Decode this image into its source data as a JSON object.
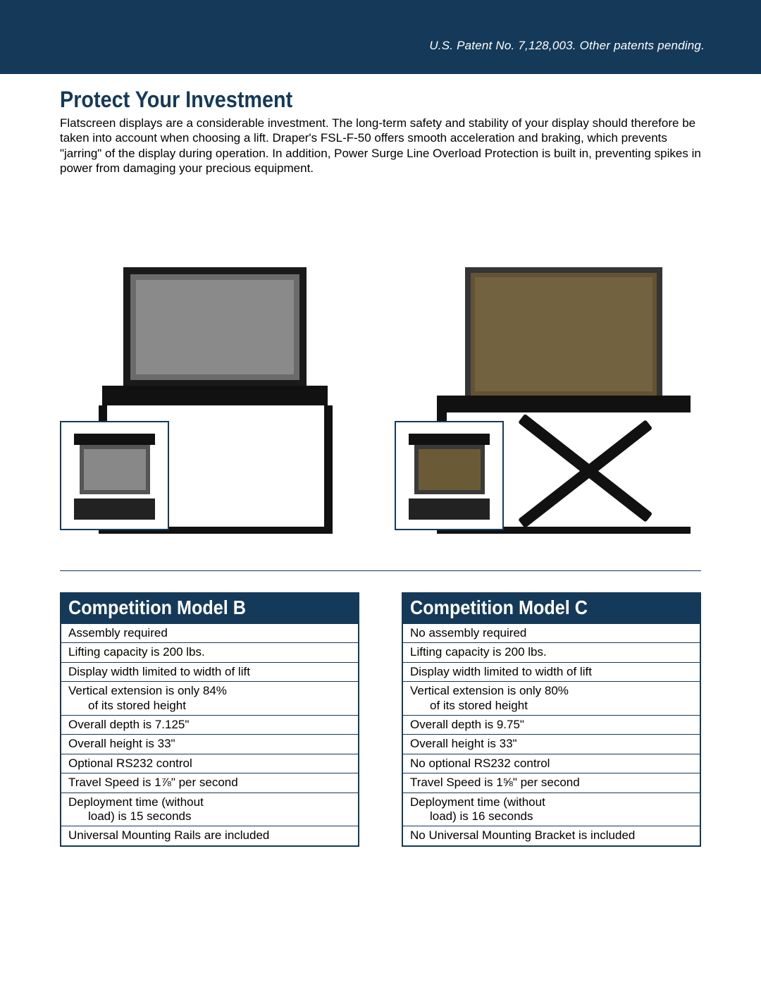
{
  "banner": {
    "background_color": "#153a59",
    "patent_text": "U.S. Patent No. 7,128,003. Other patents pending.",
    "patent_color": "#ffffff",
    "patent_fontsize": 17,
    "patent_style": "italic"
  },
  "section": {
    "heading": "Protect Your Investment",
    "heading_color": "#153a59",
    "heading_fontsize": 32,
    "body": "Flatscreen displays are a considerable investment.  The long-term safety and stability of your display should therefore be taken into account when choosing a lift.  Draper's FSL-F-50 offers smooth acceleration and braking, which prevents \"jarring\" of the display during operation.  In addition, Power Surge Line Overload Protection is built in, preventing spikes in power from damaging your precious equipment.",
    "body_fontsize": 17,
    "body_color": "#000000"
  },
  "figures": {
    "left": {
      "tv_frame_color": "#1a1a1a",
      "tv_bezel_color": "#6b6b6b",
      "tv_screen_color": "#8a8a8a",
      "lift_color": "#111111",
      "thumb_border_color": "#153a59"
    },
    "right": {
      "tv_frame_color": "#2b2b2b",
      "tv_screen_color": "#6b5a36",
      "lift_color": "#111111",
      "thumb_border_color": "#153a59"
    }
  },
  "divider_color": "#153a59",
  "tables": {
    "border_color": "#153a59",
    "header_bg": "#153a59",
    "header_color": "#ffffff",
    "header_fontsize": 28,
    "row_fontsize": 17,
    "model_b": {
      "title": "Competition Model B",
      "rows": [
        {
          "main": "Assembly required"
        },
        {
          "main": "Lifting capacity is 200 lbs."
        },
        {
          "main": "Display width limited to width of lift"
        },
        {
          "main": "Vertical extension is only 84%",
          "sub": "of its stored height"
        },
        {
          "main": "Overall depth is 7.125\""
        },
        {
          "main": "Overall height is 33\""
        },
        {
          "main": "Optional RS232 control"
        },
        {
          "main": "Travel Speed is 1⅞\" per second"
        },
        {
          "main": "Deployment time (without",
          "sub": "load) is 15 seconds"
        },
        {
          "main": "Universal Mounting Rails are included"
        }
      ]
    },
    "model_c": {
      "title": "Competition Model C",
      "rows": [
        {
          "main": "No assembly required"
        },
        {
          "main": "Lifting capacity is 200 lbs."
        },
        {
          "main": "Display width limited to width of lift"
        },
        {
          "main": "Vertical extension is only 80%",
          "sub": "of its stored height"
        },
        {
          "main": "Overall depth is 9.75\""
        },
        {
          "main": "Overall height is 33\""
        },
        {
          "main": "No optional RS232 control"
        },
        {
          "main": "Travel Speed is 1⅝\" per second"
        },
        {
          "main": "Deployment time (without",
          "sub": "load) is 16 seconds"
        },
        {
          "main": "No Universal Mounting Bracket is included"
        }
      ]
    }
  }
}
